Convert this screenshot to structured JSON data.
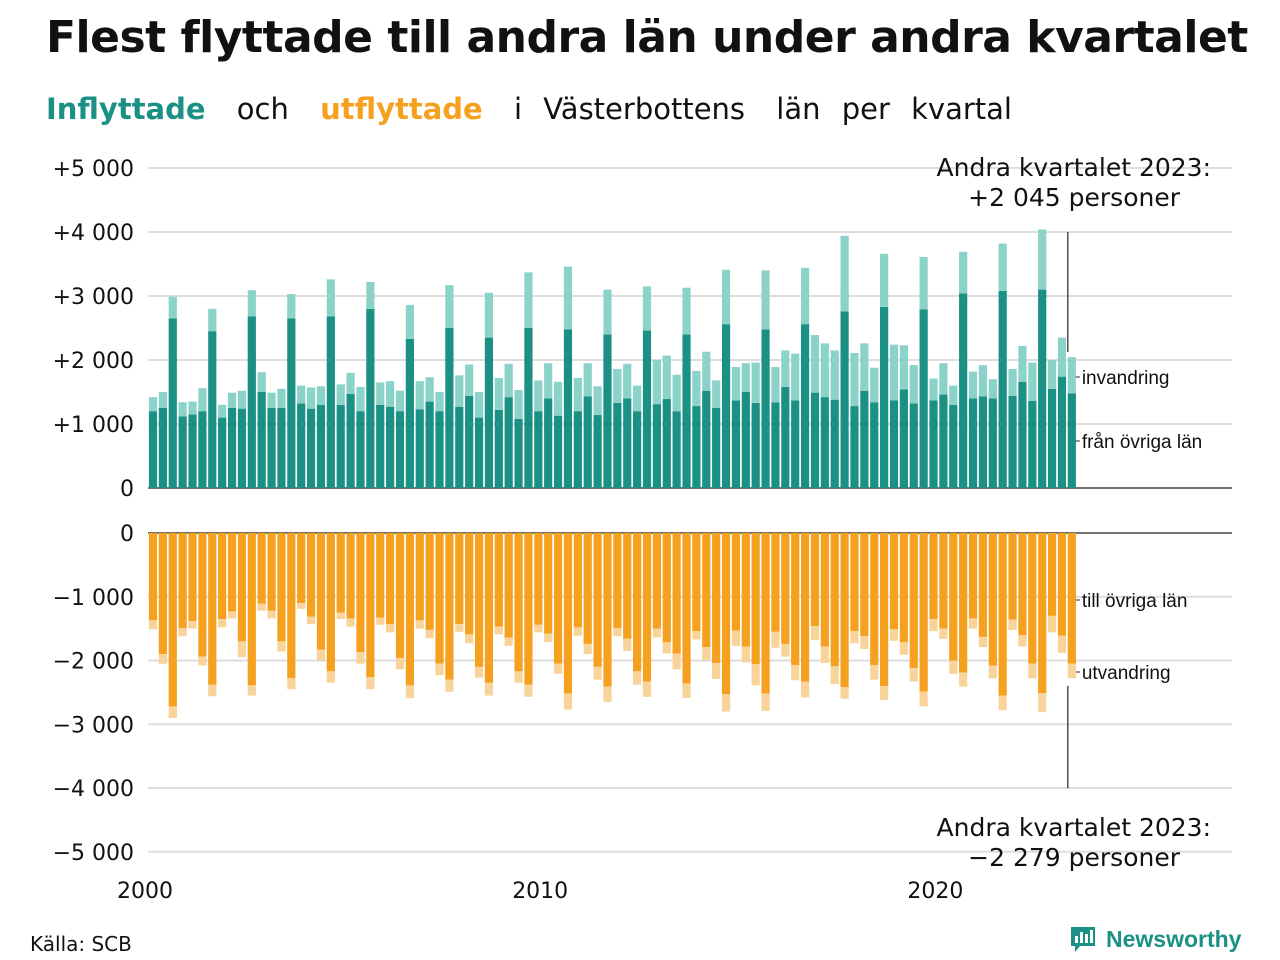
{
  "title": "Flest flyttade till andra län under andra kvartalet",
  "subtitle": {
    "in": "Inflyttade",
    "and": "och",
    "out": "utflyttade",
    "rest": [
      "i",
      "Västerbottens",
      "län",
      "per",
      "kvartal"
    ]
  },
  "colors": {
    "in_dark": "#1a9184",
    "in_light": "#8bd3c9",
    "out_dark": "#f5a01e",
    "out_light": "#f8d49a"
  },
  "annotations": {
    "top_line1": "Andra kvartalet 2023:",
    "top_line2": "+2 045 personer",
    "bottom_line1": "Andra kvartalet 2023:",
    "bottom_line2": "−2 279 personer"
  },
  "source": "Källa: SCB",
  "brand": "Newsworthy",
  "brand_icon": "bar-chart-icon",
  "chart_data": [
    {
      "type": "bar",
      "stacked": true,
      "panel": "inflyttade",
      "x_start": "2000 Q1",
      "x_ticks": [
        "2000",
        "2010",
        "2020"
      ],
      "y_ticks": [
        "+5 000",
        "+4 000",
        "+3 000",
        "+2 000",
        "+1 000",
        "0"
      ],
      "ylim": [
        0,
        5000
      ],
      "grid": true,
      "series": [
        {
          "name": "från övriga län",
          "values": [
            1200,
            1250,
            2650,
            1120,
            1150,
            1200,
            2450,
            1100,
            1250,
            1240,
            2680,
            1500,
            1250,
            1250,
            2650,
            1320,
            1240,
            1300,
            2680,
            1300,
            1470,
            1200,
            2800,
            1300,
            1270,
            1200,
            2330,
            1230,
            1350,
            1200,
            2500,
            1270,
            1440,
            1100,
            2350,
            1220,
            1420,
            1080,
            2500,
            1200,
            1400,
            1130,
            2480,
            1200,
            1430,
            1140,
            2400,
            1330,
            1400,
            1200,
            2460,
            1310,
            1390,
            1200,
            2400,
            1280,
            1520,
            1250,
            2560,
            1370,
            1500,
            1330,
            2480,
            1340,
            1580,
            1370,
            2560,
            1490,
            1420,
            1380,
            2760,
            1280,
            1520,
            1340,
            2830,
            1370,
            1540,
            1320,
            2790,
            1370,
            1460,
            1300,
            3040,
            1400,
            1430,
            1400,
            3080,
            1440,
            1660,
            1360,
            3100,
            1550,
            1740,
            1480
          ]
        },
        {
          "name": "invandring",
          "values": [
            220,
            250,
            340,
            220,
            200,
            360,
            350,
            200,
            240,
            280,
            410,
            310,
            240,
            300,
            380,
            280,
            330,
            290,
            580,
            320,
            330,
            380,
            420,
            350,
            400,
            320,
            530,
            440,
            380,
            300,
            670,
            490,
            490,
            400,
            700,
            500,
            520,
            450,
            870,
            480,
            550,
            530,
            980,
            520,
            520,
            450,
            700,
            530,
            540,
            400,
            690,
            690,
            680,
            570,
            730,
            550,
            610,
            430,
            850,
            520,
            450,
            630,
            920,
            550,
            570,
            730,
            880,
            900,
            840,
            770,
            1180,
            830,
            740,
            540,
            830,
            870,
            690,
            600,
            820,
            340,
            490,
            300,
            650,
            420,
            490,
            300,
            740,
            420,
            560,
            600,
            940,
            450,
            610,
            565
          ]
        }
      ]
    },
    {
      "type": "bar",
      "stacked": true,
      "panel": "utflyttade",
      "x_start": "2000 Q1",
      "x_ticks": [
        "2000",
        "2010",
        "2020"
      ],
      "y_ticks": [
        "0",
        "−1 000",
        "−2 000",
        "−3 000",
        "−4 000",
        "−5 000"
      ],
      "ylim": [
        -5000,
        0
      ],
      "grid": true,
      "series": [
        {
          "name": "till övriga län",
          "values": [
            -1370,
            -1900,
            -2720,
            -1490,
            -1380,
            -1940,
            -2380,
            -1350,
            -1230,
            -1700,
            -2390,
            -1110,
            -1220,
            -1700,
            -2280,
            -1100,
            -1310,
            -1830,
            -2170,
            -1250,
            -1340,
            -1870,
            -2260,
            -1330,
            -1430,
            -1960,
            -2390,
            -1370,
            -1520,
            -2050,
            -2300,
            -1430,
            -1590,
            -2100,
            -2350,
            -1470,
            -1640,
            -2170,
            -2380,
            -1440,
            -1580,
            -2050,
            -2520,
            -1480,
            -1740,
            -2100,
            -2410,
            -1490,
            -1660,
            -2170,
            -2330,
            -1500,
            -1710,
            -1890,
            -2360,
            -1540,
            -1790,
            -2040,
            -2530,
            -1530,
            -1780,
            -2060,
            -2520,
            -1550,
            -1740,
            -2070,
            -2330,
            -1460,
            -1780,
            -2090,
            -2420,
            -1540,
            -1620,
            -2070,
            -2400,
            -1510,
            -1710,
            -2120,
            -2490,
            -1350,
            -1500,
            -2000,
            -2190,
            -1340,
            -1630,
            -2080,
            -2550,
            -1360,
            -1600,
            -2050,
            -2510,
            -1300,
            -1610,
            -2050
          ]
        },
        {
          "name": "utvandring",
          "values": [
            -140,
            -150,
            -180,
            -130,
            -120,
            -140,
            -180,
            -130,
            -110,
            -250,
            -160,
            -110,
            -120,
            -160,
            -170,
            -90,
            -120,
            -170,
            -180,
            -100,
            -130,
            -180,
            -190,
            -110,
            -130,
            -180,
            -200,
            -130,
            -130,
            -180,
            -190,
            -120,
            -140,
            -170,
            -200,
            -120,
            -130,
            -180,
            -190,
            -120,
            -130,
            -160,
            -250,
            -130,
            -160,
            -200,
            -240,
            -130,
            -190,
            -210,
            -240,
            -140,
            -180,
            -250,
            -230,
            -130,
            -200,
            -250,
            -270,
            -240,
            -250,
            -330,
            -270,
            -250,
            -200,
            -240,
            -250,
            -220,
            -260,
            -280,
            -180,
            -190,
            -200,
            -230,
            -220,
            -180,
            -200,
            -210,
            -230,
            -190,
            -160,
            -210,
            -220,
            -160,
            -160,
            -200,
            -230,
            -160,
            -180,
            -230,
            -300,
            -260,
            -270,
            -229
          ]
        }
      ]
    }
  ]
}
